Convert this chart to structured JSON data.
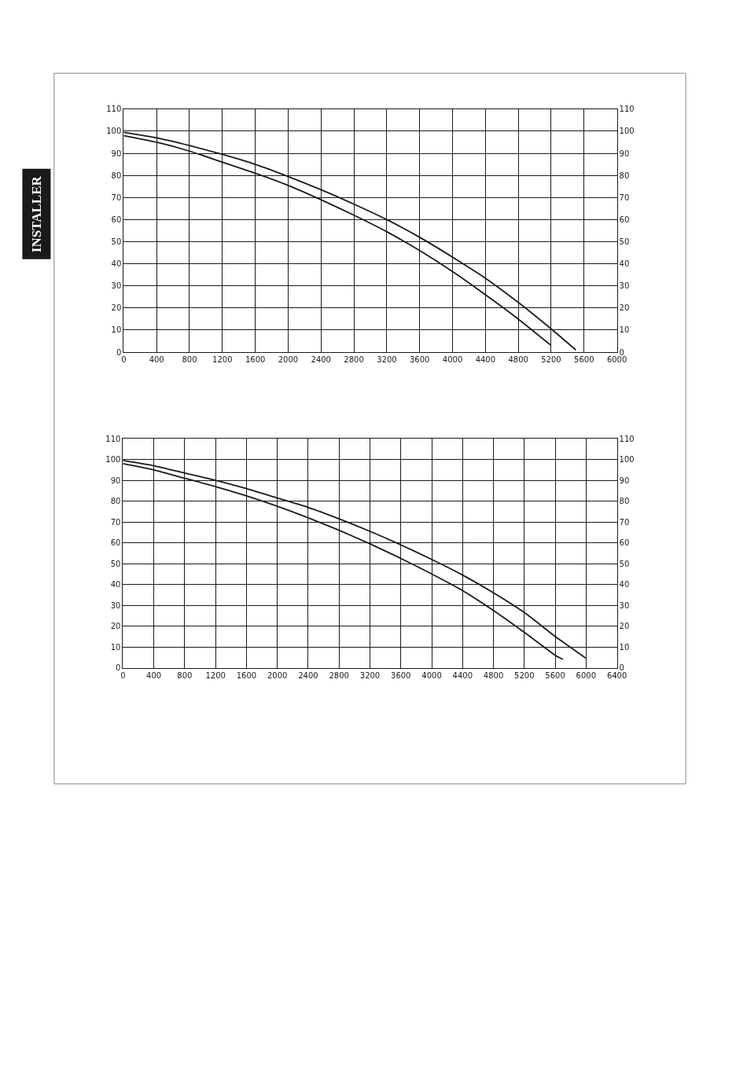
{
  "chart_data": [
    {
      "type": "line",
      "annotations": [
        "INSTALLER"
      ],
      "grid": true,
      "marker": "none",
      "line_style": "solid",
      "xlim": [
        0,
        6000
      ],
      "xticks": [
        0,
        400,
        800,
        1200,
        1600,
        2000,
        2400,
        2800,
        3200,
        3600,
        4000,
        4400,
        4800,
        5200,
        5600,
        6000
      ],
      "ylim": [
        0,
        110
      ],
      "yticks": [
        0,
        10,
        20,
        30,
        40,
        50,
        60,
        70,
        80,
        90,
        100,
        110
      ],
      "y2lim": [
        0,
        110
      ],
      "y2ticks": [
        0,
        10,
        20,
        30,
        40,
        50,
        60,
        70,
        80,
        90,
        100,
        110
      ],
      "series": [
        {
          "color": "#1a1a1a",
          "x": [
            0,
            400,
            800,
            1200,
            1600,
            2000,
            2400,
            2800,
            3200,
            3600,
            4000,
            4400,
            4800,
            5200,
            5500
          ],
          "values": [
            99.5,
            97,
            93.5,
            89.5,
            85,
            79.5,
            73.5,
            67,
            60,
            52,
            43,
            33.5,
            22.5,
            10.5,
            1
          ]
        },
        {
          "color": "#1a1a1a",
          "x": [
            0,
            400,
            800,
            1200,
            1600,
            2000,
            2400,
            2800,
            3200,
            3600,
            4000,
            4400,
            4800,
            5200
          ],
          "values": [
            98,
            95,
            91,
            86,
            81,
            75.5,
            69,
            62,
            54.5,
            46,
            36.5,
            26,
            15,
            3
          ]
        }
      ]
    },
    {
      "type": "line",
      "grid": true,
      "marker": "none",
      "line_style": "solid",
      "xlim": [
        0,
        6400
      ],
      "xticks": [
        0,
        400,
        800,
        1200,
        1600,
        2000,
        2400,
        2800,
        3200,
        3600,
        4000,
        4400,
        4800,
        5200,
        5600,
        6000,
        6400
      ],
      "ylim": [
        0,
        110
      ],
      "yticks": [
        0,
        10,
        20,
        30,
        40,
        50,
        60,
        70,
        80,
        90,
        100,
        110
      ],
      "y2lim": [
        0,
        110
      ],
      "y2ticks": [
        0,
        10,
        20,
        30,
        40,
        50,
        60,
        70,
        80,
        90,
        100,
        110
      ],
      "series": [
        {
          "color": "#1a1a1a",
          "x": [
            0,
            400,
            800,
            1200,
            1600,
            2000,
            2400,
            2800,
            3200,
            3600,
            4000,
            4400,
            4800,
            5200,
            5600,
            6000
          ],
          "values": [
            99.5,
            97,
            93.5,
            90,
            86,
            81.5,
            77,
            71.5,
            65.5,
            59,
            52,
            44.5,
            36,
            26.5,
            15,
            4.5
          ]
        },
        {
          "color": "#1a1a1a",
          "x": [
            0,
            400,
            800,
            1200,
            1600,
            2000,
            2400,
            2800,
            3200,
            3600,
            4000,
            4400,
            4800,
            5200,
            5600,
            5700
          ],
          "values": [
            98,
            95,
            91,
            87,
            82.5,
            77.5,
            72,
            66,
            59.5,
            52.5,
            45,
            37,
            27.5,
            17,
            6,
            4
          ]
        }
      ]
    }
  ]
}
